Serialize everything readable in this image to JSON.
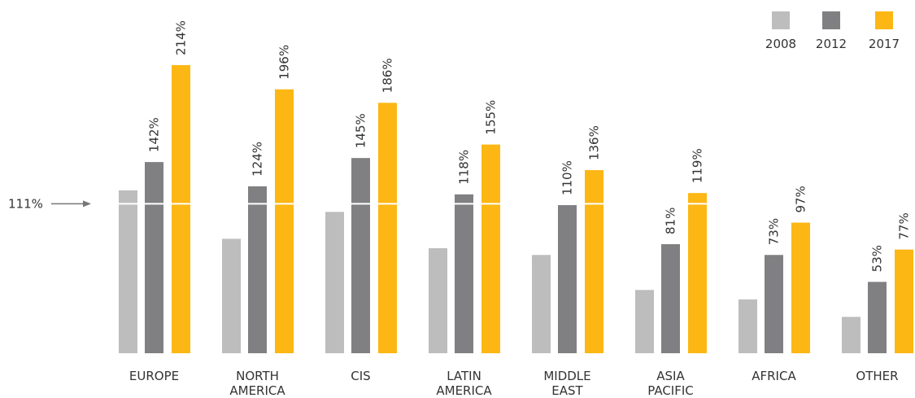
{
  "chart_data": {
    "type": "bar",
    "categories": [
      [
        "EUROPE"
      ],
      [
        "NORTH",
        "AMERICA"
      ],
      [
        "CIS"
      ],
      [
        "LATIN",
        "AMERICA"
      ],
      [
        "MIDDLE",
        "EAST"
      ],
      [
        "ASIA",
        "PACIFIC"
      ],
      [
        "AFRICA"
      ],
      [
        "OTHER"
      ]
    ],
    "series": [
      {
        "name": "2008",
        "color": "#bdbdbd",
        "values": [
          121,
          85,
          105,
          78,
          73,
          47,
          40,
          27
        ],
        "labels": [
          "",
          "",
          "",
          "",
          "",
          "",
          "",
          ""
        ]
      },
      {
        "name": "2012",
        "color": "#808083",
        "values": [
          142,
          124,
          145,
          118,
          110,
          81,
          73,
          53
        ],
        "labels": [
          "142%",
          "124%",
          "145%",
          "118%",
          "110%",
          "81%",
          "73%",
          "53%"
        ]
      },
      {
        "name": "2017",
        "color": "#fdb714",
        "values": [
          214,
          196,
          186,
          155,
          136,
          119,
          97,
          77
        ],
        "labels": [
          "214%",
          "196%",
          "186%",
          "155%",
          "136%",
          "119%",
          "97%",
          "77%"
        ]
      }
    ],
    "reference_line": {
      "value": 111,
      "label": "111%"
    },
    "ylim": [
      0,
      230
    ],
    "legend_position": "top-right",
    "grid": false,
    "title": "",
    "xlabel": "",
    "ylabel": ""
  }
}
